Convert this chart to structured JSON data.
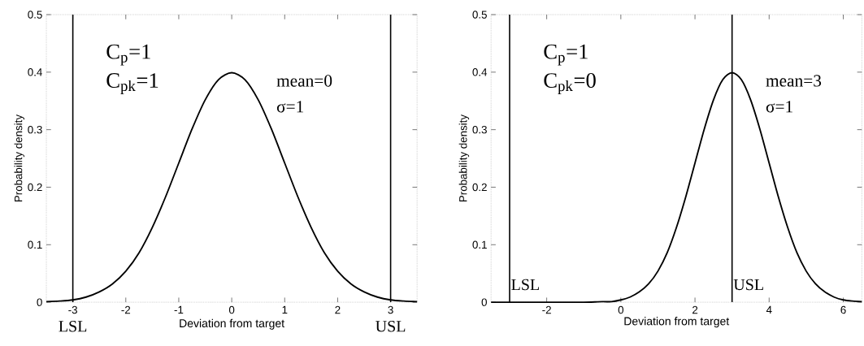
{
  "chart_data": [
    {
      "type": "line",
      "xlabel": "Deviation from target",
      "ylabel": "Probability density",
      "color": "#000000",
      "x": [
        -3.5,
        -3.25,
        -3,
        -2.75,
        -2.5,
        -2.25,
        -2,
        -1.75,
        -1.5,
        -1.25,
        -1,
        -0.75,
        -0.5,
        -0.25,
        0,
        0.25,
        0.5,
        0.75,
        1,
        1.25,
        1.5,
        1.75,
        2,
        2.25,
        2.5,
        2.75,
        3,
        3.25,
        3.5
      ],
      "values": [
        0.001,
        0.002,
        0.004,
        0.009,
        0.018,
        0.032,
        0.054,
        0.086,
        0.13,
        0.183,
        0.242,
        0.301,
        0.352,
        0.387,
        0.399,
        0.387,
        0.352,
        0.301,
        0.242,
        0.183,
        0.13,
        0.086,
        0.054,
        0.032,
        0.018,
        0.009,
        0.004,
        0.002,
        0.001
      ],
      "xlim": [
        -3.5,
        3.5
      ],
      "ylim": [
        0,
        0.5
      ],
      "xticks": [
        -3,
        -2,
        -1,
        0,
        1,
        2,
        3
      ],
      "yticks": [
        0,
        0.1,
        0.2,
        0.3,
        0.4,
        0.5
      ],
      "ref_lines": [
        {
          "axis": "x",
          "value": -3,
          "label": "LSL"
        },
        {
          "axis": "x",
          "value": 3,
          "label": "USL"
        }
      ],
      "annotations": [
        "C$_{p}$=1",
        "C$_{pk}$=1",
        "mean=0",
        "σ=1"
      ]
    },
    {
      "type": "line",
      "xlabel": "Deviation from target",
      "ylabel": "Probability density",
      "color": "#000000",
      "x": [
        -3.5,
        -3,
        -2.5,
        -2,
        -1.5,
        -1,
        -0.5,
        -0.25,
        0,
        0.25,
        0.5,
        0.75,
        1,
        1.25,
        1.5,
        1.75,
        2,
        2.25,
        2.5,
        2.75,
        3,
        3.25,
        3.5,
        3.75,
        4,
        4.25,
        4.5,
        4.75,
        5,
        5.25,
        5.5,
        5.75,
        6,
        6.25,
        6.5
      ],
      "values": [
        0,
        0,
        0,
        0,
        0,
        0,
        0.001,
        0.001,
        0.004,
        0.009,
        0.018,
        0.032,
        0.054,
        0.086,
        0.13,
        0.183,
        0.242,
        0.301,
        0.352,
        0.387,
        0.399,
        0.387,
        0.352,
        0.301,
        0.242,
        0.183,
        0.13,
        0.086,
        0.054,
        0.032,
        0.018,
        0.009,
        0.004,
        0.002,
        0.001
      ],
      "xlim": [
        -3.5,
        6.5
      ],
      "ylim": [
        0,
        0.5
      ],
      "xticks": [
        -2,
        0,
        2,
        4,
        6
      ],
      "yticks": [
        0,
        0.1,
        0.2,
        0.3,
        0.4,
        0.5
      ],
      "ref_lines": [
        {
          "axis": "x",
          "value": -3,
          "label": "LSL"
        },
        {
          "axis": "x",
          "value": 3,
          "label": "USL"
        }
      ],
      "annotations": [
        "C$_{p}$=1",
        "C$_{pk}$=0",
        "mean=3",
        "σ=1"
      ]
    }
  ]
}
